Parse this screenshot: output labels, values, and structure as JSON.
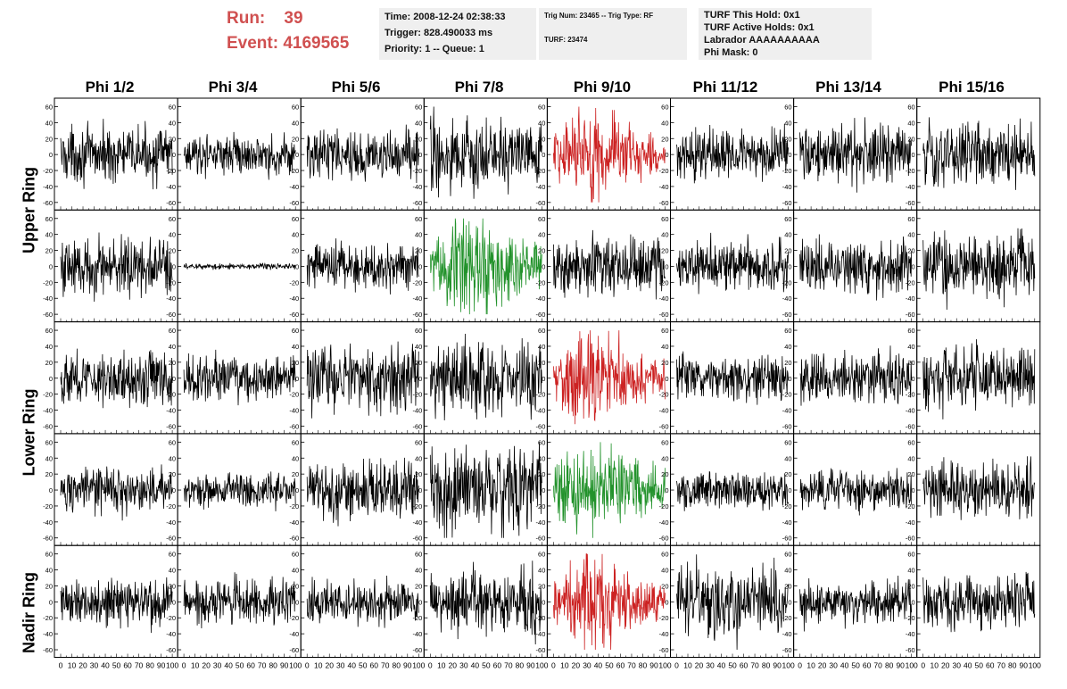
{
  "header": {
    "run_label": "Run:    39",
    "event_label": "Event: 4169565"
  },
  "info_time": {
    "line1": "Time: 2008-12-24 02:38:33",
    "line2": "Trigger: 828.490033 ms",
    "line3": "Priority: 1 -- Queue: 1"
  },
  "info_trig": {
    "line1": "Trig Num: 23465 -- Trig Type: RF",
    "line2": "TURF: 23474"
  },
  "info_turf": {
    "line1": "TURF This Hold: 0x1",
    "line2": "TURF Active Holds: 0x1",
    "line3": "Labrador AAAAAAAAAA",
    "line4": "Phi Mask: 0"
  },
  "columns": [
    "Phi 1/2",
    "Phi 3/4",
    "Phi 5/6",
    "Phi 7/8",
    "Phi 9/10",
    "Phi 11/12",
    "Phi 13/14",
    "Phi 15/16"
  ],
  "rows": [
    "Upper Ring",
    "Lower Ring",
    "Nadir Ring"
  ],
  "colors": {
    "normal": "#000000",
    "triggered_red": "#cc2222",
    "triggered_green": "#22922b",
    "frame": "#000000"
  },
  "chart_data": {
    "type": "line",
    "xlim": [
      0,
      100
    ],
    "ylim": [
      -65,
      65
    ],
    "x_ticks": [
      0,
      10,
      20,
      30,
      40,
      50,
      60,
      70,
      80,
      90,
      100
    ],
    "y_ticks": [
      -60,
      -40,
      -20,
      0,
      20,
      40,
      60
    ],
    "panels": [
      {
        "row": 0,
        "col": 0,
        "amplitude": 18,
        "color": "black"
      },
      {
        "row": 0,
        "col": 1,
        "amplitude": 13,
        "color": "black"
      },
      {
        "row": 0,
        "col": 2,
        "amplitude": 17,
        "color": "black"
      },
      {
        "row": 0,
        "col": 3,
        "amplitude": 25,
        "color": "black"
      },
      {
        "row": 0,
        "col": 4,
        "amplitude": 28,
        "color": "red",
        "pulse": true
      },
      {
        "row": 0,
        "col": 5,
        "amplitude": 17,
        "color": "black"
      },
      {
        "row": 0,
        "col": 6,
        "amplitude": 20,
        "color": "black"
      },
      {
        "row": 0,
        "col": 7,
        "amplitude": 22,
        "color": "black"
      },
      {
        "row": 1,
        "col": 0,
        "amplitude": 20,
        "color": "black"
      },
      {
        "row": 1,
        "col": 1,
        "amplitude": 2,
        "color": "black"
      },
      {
        "row": 1,
        "col": 2,
        "amplitude": 16,
        "color": "black"
      },
      {
        "row": 1,
        "col": 3,
        "amplitude": 32,
        "color": "green",
        "pulse": true
      },
      {
        "row": 1,
        "col": 4,
        "amplitude": 20,
        "color": "black"
      },
      {
        "row": 1,
        "col": 5,
        "amplitude": 17,
        "color": "black"
      },
      {
        "row": 1,
        "col": 6,
        "amplitude": 18,
        "color": "black"
      },
      {
        "row": 1,
        "col": 7,
        "amplitude": 22,
        "color": "black"
      },
      {
        "row": 2,
        "col": 0,
        "amplitude": 18,
        "color": "black"
      },
      {
        "row": 2,
        "col": 1,
        "amplitude": 15,
        "color": "black"
      },
      {
        "row": 2,
        "col": 2,
        "amplitude": 22,
        "color": "black"
      },
      {
        "row": 2,
        "col": 3,
        "amplitude": 24,
        "color": "black"
      },
      {
        "row": 2,
        "col": 4,
        "amplitude": 28,
        "color": "red",
        "pulse": true
      },
      {
        "row": 2,
        "col": 5,
        "amplitude": 16,
        "color": "black"
      },
      {
        "row": 2,
        "col": 6,
        "amplitude": 17,
        "color": "black"
      },
      {
        "row": 2,
        "col": 7,
        "amplitude": 22,
        "color": "black"
      },
      {
        "row": 3,
        "col": 0,
        "amplitude": 15,
        "color": "black"
      },
      {
        "row": 3,
        "col": 1,
        "amplitude": 12,
        "color": "black"
      },
      {
        "row": 3,
        "col": 2,
        "amplitude": 20,
        "color": "black"
      },
      {
        "row": 3,
        "col": 3,
        "amplitude": 30,
        "color": "black"
      },
      {
        "row": 3,
        "col": 4,
        "amplitude": 28,
        "color": "green",
        "pulse": true
      },
      {
        "row": 3,
        "col": 5,
        "amplitude": 12,
        "color": "black"
      },
      {
        "row": 3,
        "col": 6,
        "amplitude": 13,
        "color": "black"
      },
      {
        "row": 3,
        "col": 7,
        "amplitude": 18,
        "color": "black"
      },
      {
        "row": 4,
        "col": 0,
        "amplitude": 17,
        "color": "black"
      },
      {
        "row": 4,
        "col": 1,
        "amplitude": 15,
        "color": "black"
      },
      {
        "row": 4,
        "col": 2,
        "amplitude": 14,
        "color": "black"
      },
      {
        "row": 4,
        "col": 3,
        "amplitude": 22,
        "color": "black"
      },
      {
        "row": 4,
        "col": 4,
        "amplitude": 28,
        "color": "red",
        "pulse": true
      },
      {
        "row": 4,
        "col": 5,
        "amplitude": 25,
        "color": "black"
      },
      {
        "row": 4,
        "col": 6,
        "amplitude": 15,
        "color": "black"
      },
      {
        "row": 4,
        "col": 7,
        "amplitude": 18,
        "color": "black"
      }
    ]
  }
}
